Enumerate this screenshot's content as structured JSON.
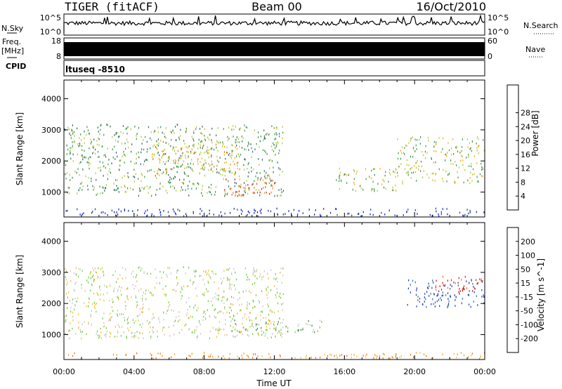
{
  "header": {
    "radar": "TIGER (fitACF)",
    "beam": "Beam 00",
    "date": "16/Oct/2010"
  },
  "strip": {
    "nsky_label": "N.Sky",
    "nsky_ticks": [
      "10^5",
      "10^0"
    ],
    "nsearch_label": "N.Search",
    "nsearch_ticks": [
      "10^5",
      "10^0"
    ],
    "freq_label": "Freq.",
    "freq_unit": "[MHz]",
    "freq_ticks": [
      "18",
      "8"
    ],
    "nave_label": "Nave",
    "nave_ticks": [
      "60",
      "0"
    ],
    "cpid_label": "CPID",
    "cpid_value": "ltuseq -8510"
  },
  "chart_data": [
    {
      "type": "heatmap",
      "name": "power",
      "xlabel": "",
      "ylabel": "Slant Range [km]",
      "xlim": [
        0,
        24
      ],
      "ylim": [
        200,
        4600
      ],
      "y_ticks": [
        "1000",
        "2000",
        "3000",
        "4000"
      ],
      "x_ticks": [
        "00:00",
        "04:00",
        "08:00",
        "12:00",
        "16:00",
        "20:00",
        "00:00"
      ],
      "colorbar": {
        "label": "Power [dB]",
        "ticks": [
          "4",
          "8",
          "12",
          "16",
          "20",
          "24",
          "28"
        ],
        "colors": [
          "#0b1fd8",
          "#1c3f9c",
          "#2e6f6c",
          "#3c9a4a",
          "#b6c83a",
          "#f0b01c",
          "#f07f17",
          "#ee5516",
          "#e01e12"
        ]
      },
      "regions": [
        {
          "t": [
            0.0,
            12.5
          ],
          "r": [
            900,
            3200
          ],
          "level": 3
        },
        {
          "t": [
            5.0,
            10.0
          ],
          "r": [
            1600,
            2700
          ],
          "level": 5
        },
        {
          "t": [
            9.0,
            12.0
          ],
          "r": [
            900,
            1500
          ],
          "level": 7
        },
        {
          "t": [
            15.5,
            19.0
          ],
          "r": [
            1000,
            1800
          ],
          "level": 4
        },
        {
          "t": [
            19.0,
            24.0
          ],
          "r": [
            1300,
            2800
          ],
          "level": 4
        },
        {
          "t": [
            0.0,
            24.0
          ],
          "r": [
            250,
            500
          ],
          "level": 0
        }
      ]
    },
    {
      "type": "heatmap",
      "name": "velocity",
      "xlabel": "Time UT",
      "ylabel": "Slant Range [km]",
      "xlim": [
        0,
        24
      ],
      "ylim": [
        200,
        4600
      ],
      "y_ticks": [
        "1000",
        "2000",
        "3000",
        "4000"
      ],
      "x_ticks": [
        "00:00",
        "04:00",
        "08:00",
        "12:00",
        "16:00",
        "20:00",
        "00:00"
      ],
      "colorbar": {
        "label": "Velocity [m s^-1]",
        "ticks": [
          "200",
          "100",
          "50",
          "15",
          "-15",
          "-50",
          "-100",
          "-200"
        ],
        "colors": [
          "#1f3fc8",
          "#2f6f9a",
          "#3a8f3a",
          "#6ccf3a",
          "#c9c9c9",
          "#f2c033",
          "#f29a22",
          "#f06f16",
          "#e21a12"
        ]
      },
      "regions": [
        {
          "t": [
            0.0,
            12.5
          ],
          "r": [
            900,
            3200
          ],
          "level": 4
        },
        {
          "t": [
            9.5,
            15.0
          ],
          "r": [
            1100,
            1500
          ],
          "level": 3
        },
        {
          "t": [
            19.5,
            24.0
          ],
          "r": [
            1900,
            2800
          ],
          "level": 0
        },
        {
          "t": [
            21.0,
            24.0
          ],
          "r": [
            2400,
            2900
          ],
          "level": 8
        },
        {
          "t": [
            0.0,
            24.0
          ],
          "r": [
            250,
            450
          ],
          "level": 6
        }
      ]
    }
  ]
}
